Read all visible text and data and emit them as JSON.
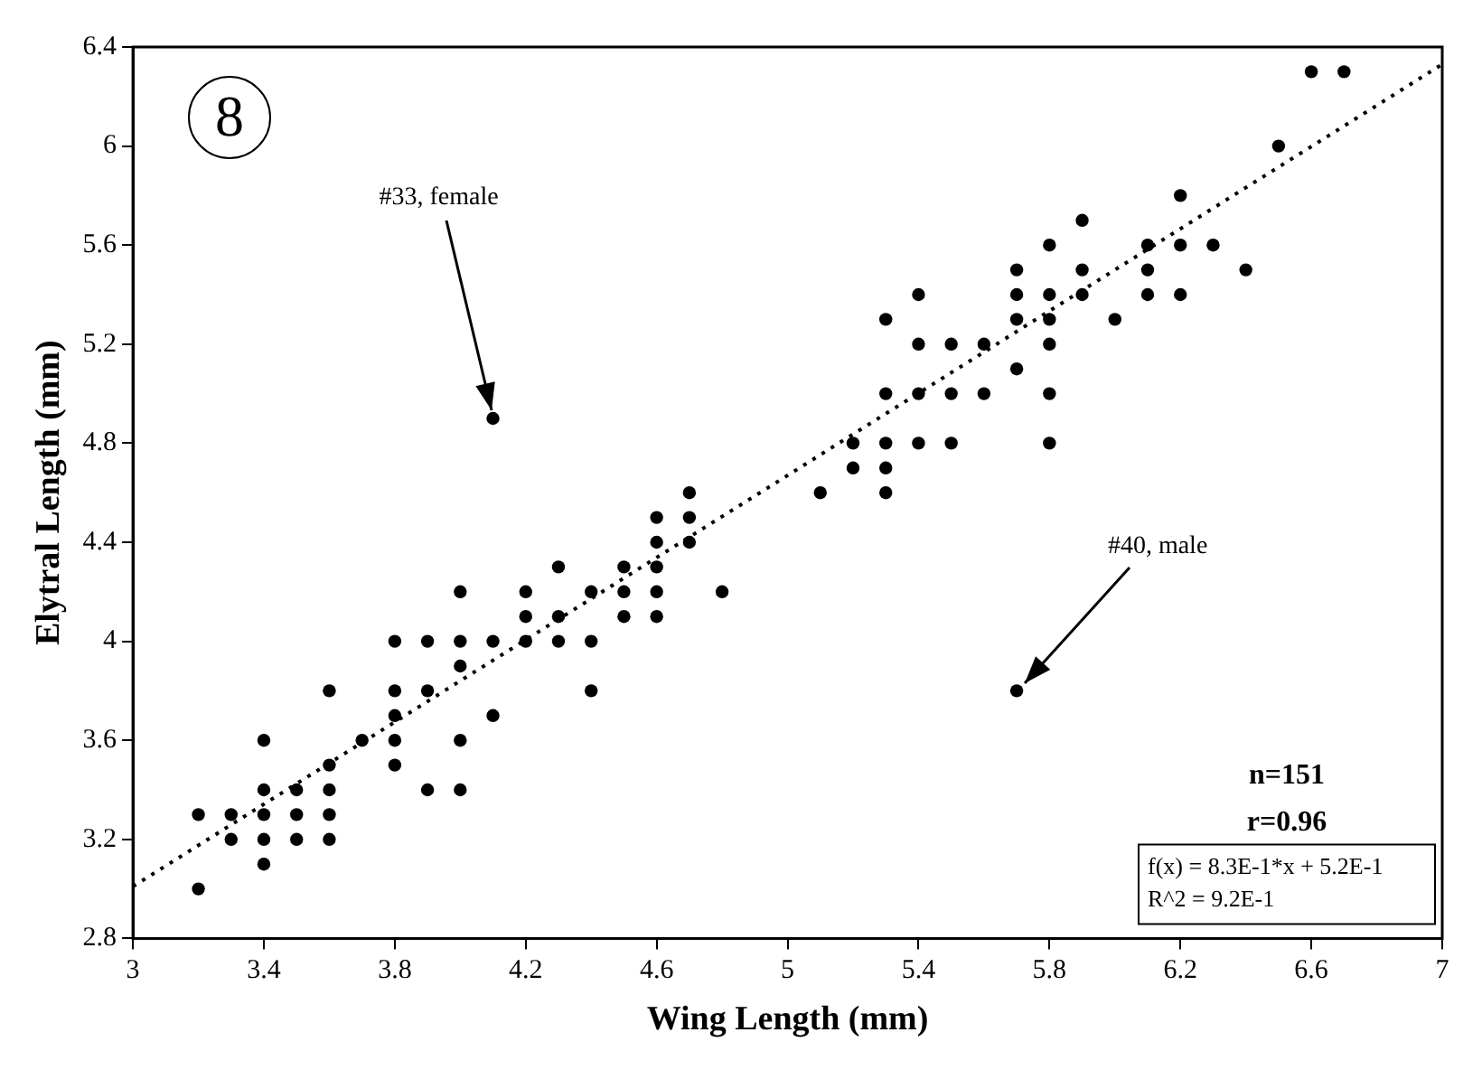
{
  "chart_data": {
    "type": "scatter",
    "xlabel": "Wing Length (mm)",
    "ylabel": "Elytral Length (mm)",
    "xlim": [
      3,
      7
    ],
    "ylim": [
      2.8,
      6.4
    ],
    "xticks": [
      3,
      3.4,
      3.8,
      4.2,
      4.6,
      5,
      5.4,
      5.8,
      6.2,
      6.6,
      7
    ],
    "yticks": [
      2.8,
      3.2,
      3.6,
      4,
      4.4,
      4.8,
      5.2,
      5.6,
      6,
      6.4
    ],
    "grid": false,
    "legend": false,
    "marker": "circle",
    "series": [
      {
        "color": "#000000",
        "x": [
          3.2,
          3.2,
          3.3,
          3.3,
          3.4,
          3.4,
          3.4,
          3.4,
          3.4,
          3.5,
          3.5,
          3.5,
          3.6,
          3.6,
          3.6,
          3.6,
          3.6,
          3.7,
          3.8,
          3.8,
          3.8,
          3.8,
          3.8,
          3.9,
          3.9,
          3.9,
          4.0,
          4.0,
          4.0,
          4.0,
          4.0,
          4.1,
          4.1,
          4.1,
          4.2,
          4.2,
          4.2,
          4.3,
          4.3,
          4.3,
          4.4,
          4.4,
          4.4,
          4.5,
          4.5,
          4.5,
          4.6,
          4.6,
          4.6,
          4.6,
          4.6,
          4.7,
          4.7,
          4.7,
          4.8,
          5.1,
          5.2,
          5.2,
          5.3,
          5.3,
          5.3,
          5.3,
          5.3,
          5.4,
          5.4,
          5.4,
          5.4,
          5.5,
          5.5,
          5.5,
          5.6,
          5.6,
          5.7,
          5.7,
          5.7,
          5.7,
          5.7,
          5.8,
          5.8,
          5.8,
          5.8,
          5.8,
          5.8,
          5.9,
          5.9,
          5.9,
          6.0,
          6.1,
          6.1,
          6.1,
          6.2,
          6.2,
          6.2,
          6.3,
          6.4,
          6.5,
          6.6,
          6.7
        ],
        "values": [
          3.3,
          3.0,
          3.3,
          3.2,
          3.6,
          3.4,
          3.3,
          3.2,
          3.1,
          3.4,
          3.3,
          3.2,
          3.8,
          3.5,
          3.4,
          3.3,
          3.2,
          3.6,
          4.0,
          3.8,
          3.7,
          3.6,
          3.5,
          4.0,
          3.8,
          3.4,
          4.2,
          4.0,
          3.9,
          3.6,
          3.4,
          4.9,
          4.0,
          3.7,
          4.2,
          4.1,
          4.0,
          4.3,
          4.1,
          4.0,
          4.2,
          4.0,
          3.8,
          4.3,
          4.2,
          4.1,
          4.5,
          4.4,
          4.3,
          4.2,
          4.1,
          4.6,
          4.5,
          4.4,
          4.2,
          4.6,
          4.8,
          4.7,
          5.3,
          5.0,
          4.8,
          4.7,
          4.6,
          5.4,
          5.2,
          5.0,
          4.8,
          5.2,
          5.0,
          4.8,
          5.2,
          5.0,
          5.5,
          5.4,
          5.3,
          5.1,
          3.8,
          5.6,
          5.4,
          5.3,
          5.2,
          5.0,
          4.8,
          5.7,
          5.5,
          5.4,
          5.3,
          5.6,
          5.5,
          5.4,
          5.8,
          5.6,
          5.4,
          5.6,
          5.5,
          6.0,
          6.3,
          6.3
        ]
      },
      {
        "type": "line",
        "color": "#000000",
        "x": [
          3,
          7
        ],
        "values": [
          3.01,
          6.33
        ],
        "line_style": "dotted",
        "marker": "none"
      }
    ],
    "annotations": [
      "8",
      {
        "text": "#33, female",
        "x": 4.1,
        "y": 4.9
      },
      {
        "text": "#40, male",
        "x": 5.7,
        "y": 3.8
      },
      "n=151",
      "r=0.96",
      "f(x) = 8.3E-1*x + 5.2E-1",
      "R^2 = 9.2E-1"
    ]
  }
}
